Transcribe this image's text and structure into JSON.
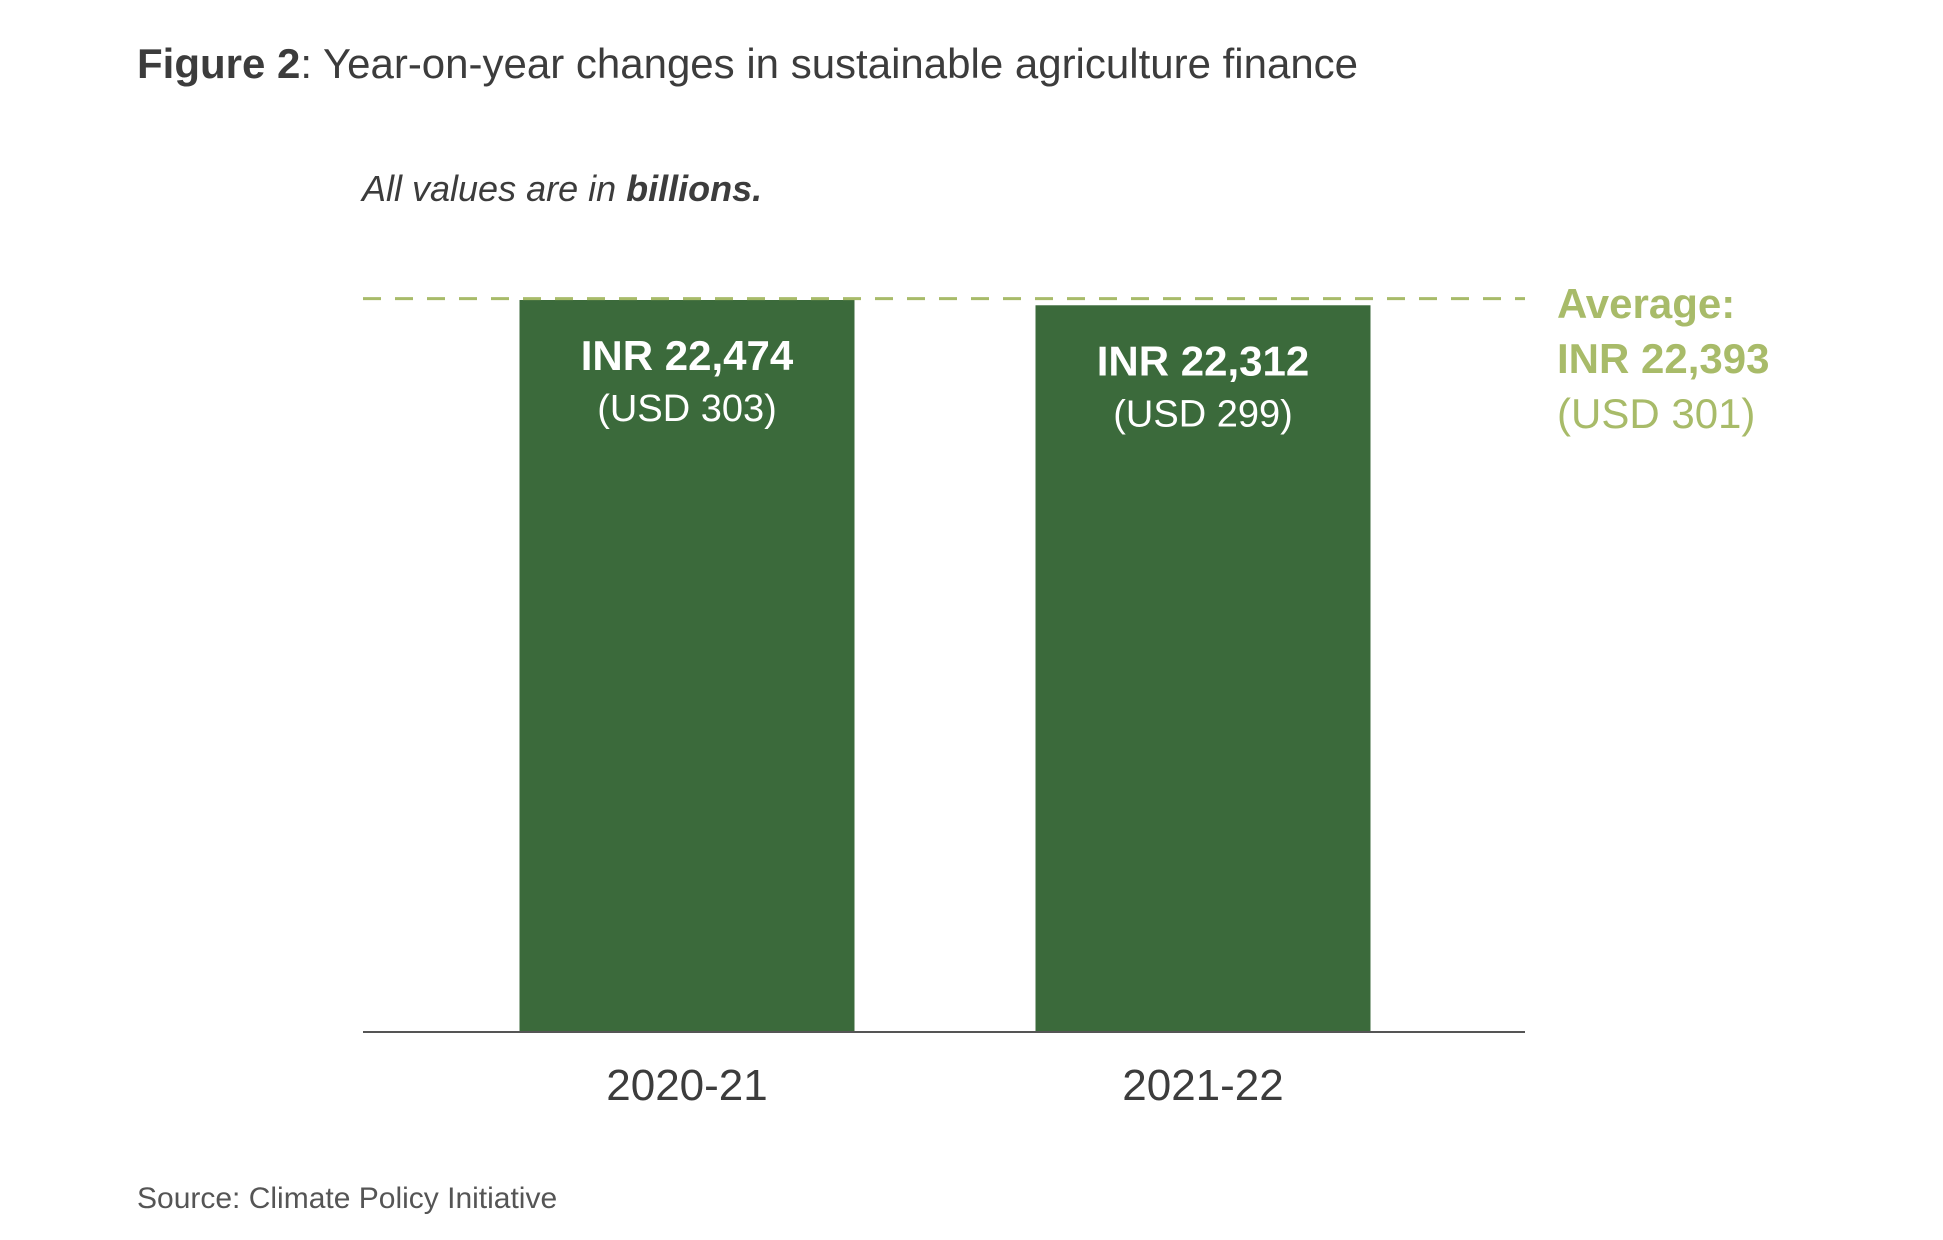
{
  "figure": {
    "label": "Figure 2",
    "title": ": Year-on-year changes in sustainable agriculture finance"
  },
  "note": {
    "prefix": "All values are in ",
    "emphasis": "billions."
  },
  "source": "Source: Climate Policy Initiative",
  "colors": {
    "bar": "#3b6a3b",
    "average": "#a8bb69",
    "axis": "#555555",
    "text": "#3c3c3c"
  },
  "chart_data": {
    "type": "bar",
    "categories": [
      "2020-21",
      "2021-22"
    ],
    "values": [
      22474,
      22312
    ],
    "data_labels": [
      "INR 22,474",
      "INR 22,312"
    ],
    "data_sublabels": [
      "(USD 303)",
      "(USD 299)"
    ],
    "usd_values": [
      303,
      299
    ],
    "average": {
      "value": 22393,
      "label_title": "Average:",
      "label_value": "INR 22,393",
      "label_usd": "(USD 301)"
    },
    "ylim": [
      0,
      22474
    ],
    "grid": false,
    "legend": "none"
  }
}
